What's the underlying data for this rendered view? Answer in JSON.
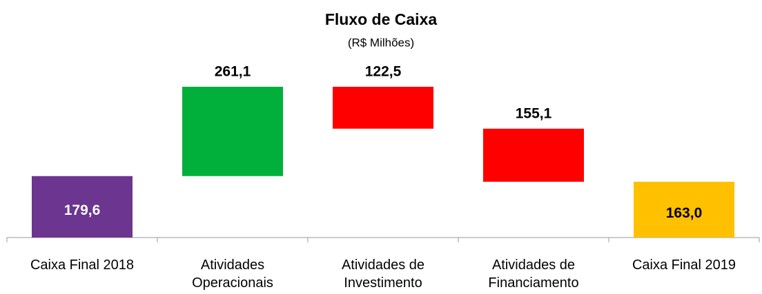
{
  "chart_data": {
    "type": "waterfall",
    "title": "Fluxo de Caixa",
    "subtitle": "(R$ Milhões)",
    "categories": [
      "Caixa Final 2018",
      "Atividades Operacionais",
      "Atividades de Investimento",
      "Atividades de Financiamento",
      "Caixa Final 2019"
    ],
    "values": [
      179.6,
      261.1,
      -122.5,
      -155.1,
      163.0
    ],
    "value_labels": [
      "179,6",
      "261,1",
      "122,5",
      "155,1",
      "163,0"
    ],
    "colors": [
      "#6b3590",
      "#00b03a",
      "#ff0000",
      "#ff0000",
      "#ffc000"
    ]
  }
}
